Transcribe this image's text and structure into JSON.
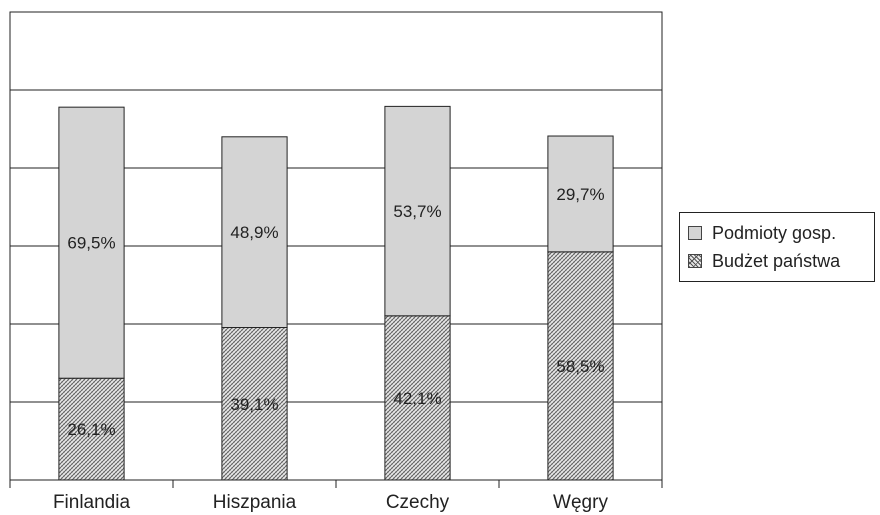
{
  "chart_data": {
    "type": "bar",
    "stacked": true,
    "categories": [
      "Finlandia",
      "Hiszpania",
      "Czechy",
      "Węgry"
    ],
    "series": [
      {
        "name": "Budżet państwa",
        "values": [
          26.1,
          39.1,
          42.1,
          58.5
        ],
        "labels": [
          "26,1%",
          "39,1%",
          "42,1%",
          "58,5%"
        ],
        "fill": "hatch"
      },
      {
        "name": "Podmioty gosp.",
        "values": [
          69.5,
          48.9,
          53.7,
          29.7
        ],
        "labels": [
          "69,5%",
          "48,9%",
          "53,7%",
          "29,7%"
        ],
        "fill": "gray"
      }
    ],
    "ylim": [
      0,
      120
    ],
    "y_gridlines": [
      20,
      40,
      60,
      80,
      100,
      120
    ],
    "y_tick_labels_shown": false,
    "grid": true,
    "legend_position": "right",
    "title": "",
    "xlabel": "",
    "ylabel": ""
  },
  "colors": {
    "gray_fill": "#d4d4d4",
    "hatch_bg": "#e8e8e8",
    "hatch_line": "#555555",
    "axis": "#222222"
  },
  "legend": {
    "items": [
      {
        "label": "Podmioty gosp."
      },
      {
        "label": "Budżet państwa"
      }
    ]
  }
}
